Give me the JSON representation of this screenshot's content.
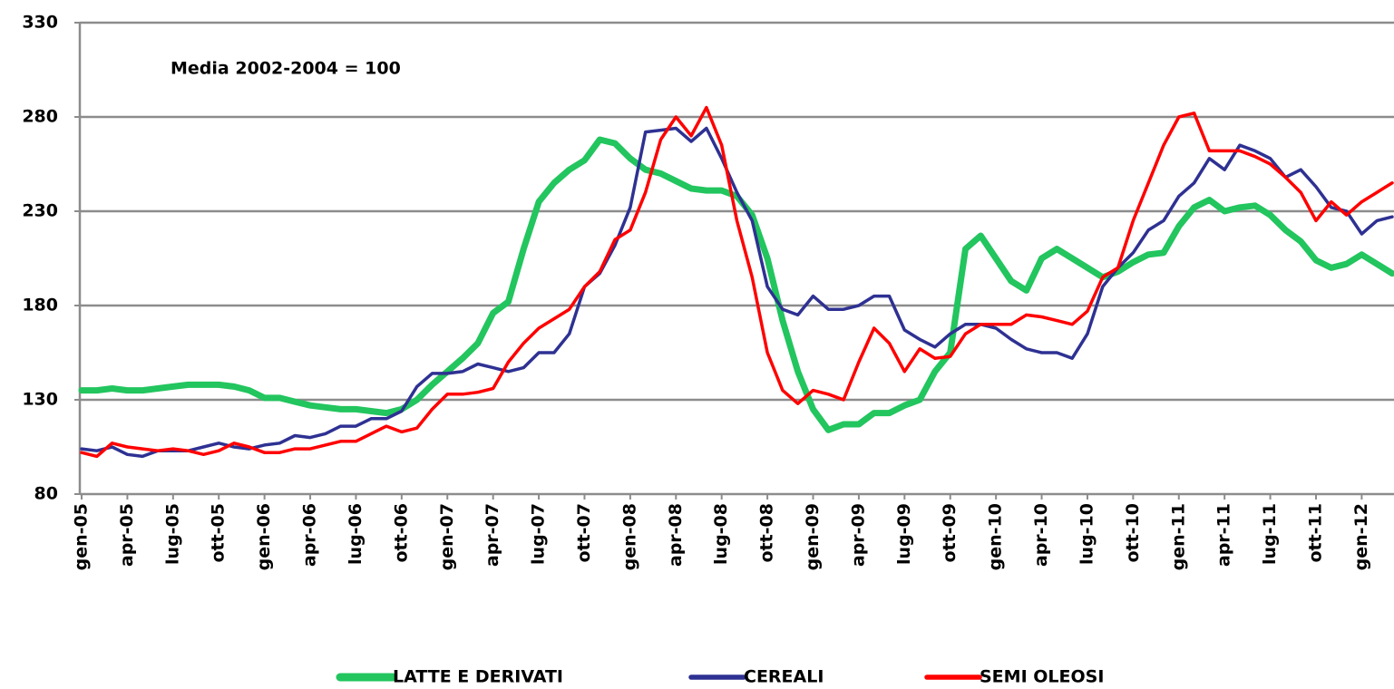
{
  "chart_data": {
    "type": "line",
    "annotation": "Media 2002-2004 = 100",
    "categories": [
      "gen-05",
      null,
      null,
      "apr-05",
      null,
      null,
      "lug-05",
      null,
      null,
      "ott-05",
      null,
      null,
      "gen-06",
      null,
      null,
      "apr-06",
      null,
      null,
      "lug-06",
      null,
      null,
      "ott-06",
      null,
      null,
      "gen-07",
      null,
      null,
      "apr-07",
      null,
      null,
      "lug-07",
      null,
      null,
      "ott-07",
      null,
      null,
      "gen-08",
      null,
      null,
      "apr-08",
      null,
      null,
      "lug-08",
      null,
      null,
      "ott-08",
      null,
      null,
      "gen-09",
      null,
      null,
      "apr-09",
      null,
      null,
      "lug-09",
      null,
      null,
      "ott-09",
      null,
      null,
      "gen-10",
      null,
      null,
      "apr-10",
      null,
      null,
      "lug-10",
      null,
      null,
      "ott-10",
      null,
      null,
      "gen-11",
      null,
      null,
      "apr-11",
      null,
      null,
      "lug-11",
      null,
      null,
      "ott-11",
      null,
      null,
      "gen-12",
      null,
      null
    ],
    "series": [
      {
        "name": "LATTE E DERIVATI",
        "color": "#22c55e",
        "width": 7,
        "values": [
          135,
          135,
          136,
          135,
          135,
          136,
          137,
          138,
          138,
          138,
          137,
          135,
          131,
          131,
          129,
          127,
          126,
          125,
          125,
          124,
          123,
          125,
          130,
          138,
          145,
          152,
          160,
          176,
          182,
          210,
          235,
          245,
          252,
          257,
          268,
          266,
          258,
          252,
          250,
          246,
          242,
          241,
          241,
          238,
          228,
          205,
          172,
          145,
          125,
          114,
          117,
          117,
          123,
          123,
          127,
          130,
          145,
          155,
          210,
          217,
          205,
          193,
          188,
          205,
          210,
          205,
          200,
          195,
          198,
          203,
          207,
          208,
          222,
          232,
          236,
          230,
          232,
          233,
          228,
          220,
          214,
          204,
          200,
          202,
          207,
          202,
          197
        ]
      },
      {
        "name": "CEREALI",
        "color": "#2e3192",
        "width": 3.5,
        "values": [
          104,
          103,
          105,
          101,
          100,
          103,
          103,
          103,
          105,
          107,
          105,
          104,
          106,
          107,
          111,
          110,
          112,
          116,
          116,
          120,
          120,
          124,
          137,
          144,
          144,
          145,
          149,
          147,
          145,
          147,
          155,
          155,
          165,
          190,
          197,
          212,
          232,
          272,
          273,
          274,
          267,
          274,
          258,
          240,
          225,
          190,
          178,
          175,
          185,
          178,
          178,
          180,
          185,
          185,
          167,
          162,
          158,
          165,
          170,
          170,
          168,
          162,
          157,
          155,
          155,
          152,
          165,
          190,
          200,
          208,
          220,
          225,
          238,
          245,
          258,
          252,
          265,
          262,
          258,
          248,
          252,
          243,
          232,
          230,
          218,
          225,
          227
        ]
      },
      {
        "name": "SEMI OLEOSI",
        "color": "#ff0000",
        "width": 3.5,
        "values": [
          102,
          100,
          107,
          105,
          104,
          103,
          104,
          103,
          101,
          103,
          107,
          105,
          102,
          102,
          104,
          104,
          106,
          108,
          108,
          112,
          116,
          113,
          115,
          125,
          133,
          133,
          134,
          136,
          150,
          160,
          168,
          173,
          178,
          190,
          198,
          215,
          220,
          240,
          268,
          280,
          270,
          285,
          265,
          225,
          195,
          155,
          135,
          128,
          135,
          133,
          130,
          150,
          168,
          160,
          145,
          157,
          152,
          153,
          165,
          170,
          170,
          170,
          175,
          174,
          172,
          170,
          177,
          195,
          200,
          225,
          245,
          265,
          280,
          282,
          262,
          262,
          262,
          259,
          255,
          248,
          240,
          225,
          235,
          228,
          235,
          240,
          245
        ]
      }
    ],
    "ylim": [
      80,
      330
    ],
    "yticks": [
      80,
      130,
      180,
      230,
      280,
      330
    ],
    "grid": true,
    "legend": "bottom"
  }
}
